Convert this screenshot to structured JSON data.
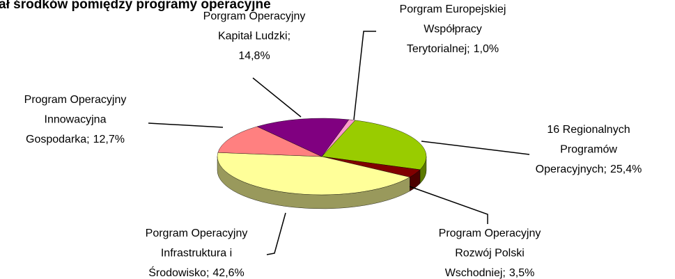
{
  "chart_data": {
    "type": "pie3d",
    "title": "ał środków pomiędzy programy operacyjne",
    "label_separator": ";",
    "categories": [
      [
        "Porgram Europejskiej",
        "Współpracy",
        "Terytorialnej"
      ],
      [
        "16 Regionalnych",
        "Programów",
        "Operacyjnych"
      ],
      [
        "Program Operacyjny",
        "Rozwój Polski",
        "Wschodniej"
      ],
      [
        "Porgram Operacyjny",
        "Infrastruktura i",
        "Środowisko"
      ],
      [
        "Program Operacyjny",
        "Innowacyjna",
        "Gospodarka"
      ],
      [
        "Porgram Operacyjny",
        "Kapitał Ludzki"
      ]
    ],
    "values": [
      1.0,
      25.4,
      3.5,
      42.6,
      12.7,
      14.8
    ],
    "value_labels": [
      "1,0%",
      "25,4%",
      "3,5%",
      "42,6%",
      "12,7%",
      "14,8%"
    ],
    "colors": [
      "#ff99cc",
      "#99cc00",
      "#800000",
      "#ffff99",
      "#ff8080",
      "#800080"
    ]
  }
}
